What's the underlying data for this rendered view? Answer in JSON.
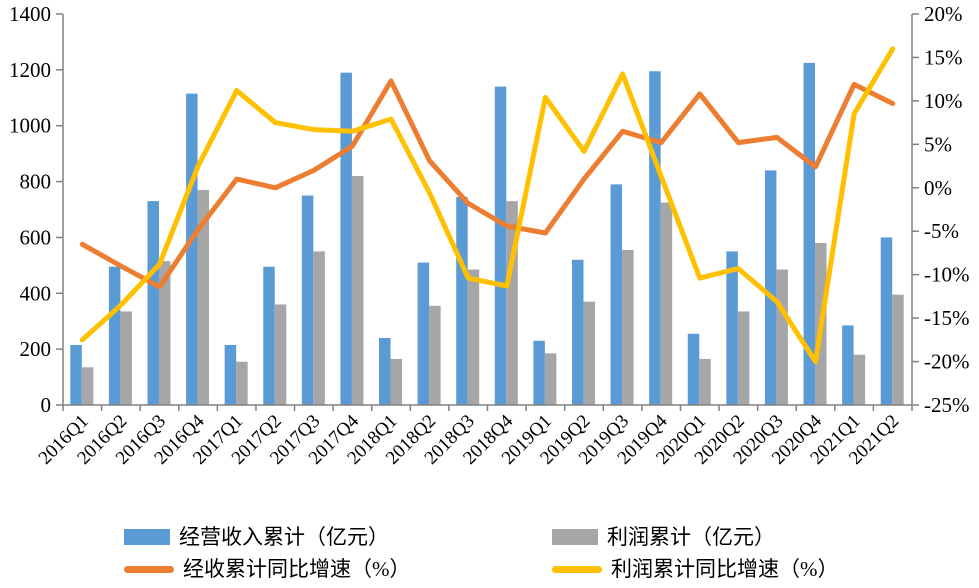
{
  "chart_data": {
    "type": "combo-bar-line",
    "title": "",
    "categories": [
      "2016Q1",
      "2016Q2",
      "2016Q3",
      "2016Q4",
      "2017Q1",
      "2017Q2",
      "2017Q3",
      "2017Q4",
      "2018Q1",
      "2018Q2",
      "2018Q3",
      "2018Q4",
      "2019Q1",
      "2019Q2",
      "2019Q3",
      "2019Q4",
      "2020Q1",
      "2020Q2",
      "2020Q3",
      "2020Q4",
      "2021Q1",
      "2021Q2"
    ],
    "series": [
      {
        "name": "经营收入累计（亿元）",
        "type": "bar",
        "axis": "left",
        "color": "#5B9BD5",
        "values": [
          215,
          495,
          730,
          1115,
          215,
          495,
          750,
          1190,
          240,
          510,
          745,
          1140,
          230,
          520,
          790,
          1195,
          255,
          550,
          840,
          1225,
          285,
          600
        ]
      },
      {
        "name": "利润累计（亿元）",
        "type": "bar",
        "axis": "left",
        "color": "#A6A6A6",
        "values": [
          135,
          335,
          515,
          770,
          155,
          360,
          550,
          820,
          165,
          355,
          485,
          730,
          185,
          370,
          555,
          725,
          165,
          335,
          485,
          580,
          180,
          395
        ]
      },
      {
        "name": "经收累计同比增速（%）",
        "type": "line",
        "axis": "right",
        "color": "#ED7D31",
        "values": [
          -6.5,
          -9.0,
          -11.4,
          -4.8,
          1.0,
          0.0,
          2.0,
          4.8,
          12.3,
          3.1,
          -1.8,
          -4.4,
          -5.2,
          1.0,
          6.5,
          5.2,
          10.8,
          5.2,
          5.8,
          2.4,
          11.9,
          9.7
        ]
      },
      {
        "name": "利润累计同比增速（%）",
        "type": "line",
        "axis": "right",
        "color": "#FFC000",
        "values": [
          -17.5,
          -13.5,
          -8.8,
          2.5,
          11.2,
          7.5,
          6.7,
          6.5,
          7.9,
          -0.6,
          -10.4,
          -11.3,
          10.4,
          4.2,
          13.1,
          1.3,
          -10.4,
          -9.3,
          -13.1,
          -20.0,
          8.5,
          16.0
        ]
      }
    ],
    "left_axis": {
      "min": 0,
      "max": 1400,
      "step": 200,
      "tick_labels": [
        "0",
        "200",
        "400",
        "600",
        "800",
        "1000",
        "1200",
        "1400"
      ]
    },
    "right_axis": {
      "min": -25,
      "max": 20,
      "step": 5,
      "tick_labels": [
        "-25%",
        "-20%",
        "-15%",
        "-10%",
        "-5%",
        "0%",
        "5%",
        "10%",
        "15%",
        "20%"
      ]
    },
    "grid": false,
    "legend_position": "bottom",
    "axis_color": "#808080"
  }
}
